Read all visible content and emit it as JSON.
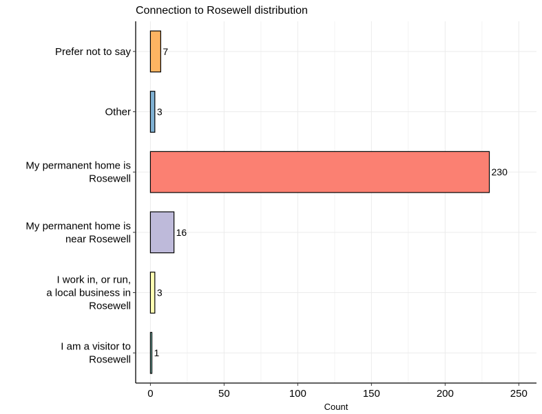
{
  "chart_data": {
    "type": "bar",
    "orientation": "horizontal",
    "title": "Connection to Rosewell distribution",
    "xlabel": "Count",
    "ylabel": "",
    "xlim": [
      -10,
      262
    ],
    "xticks": [
      0,
      50,
      100,
      150,
      200,
      250
    ],
    "grid": true,
    "legend": "none",
    "categories": [
      "Prefer not to say",
      "Other",
      "My permanent home is\nRosewell",
      "My permanent home is\nnear Rosewell",
      "I work in, or run,\na local business in\nRosewell",
      "I am a visitor to\nRosewell"
    ],
    "values": [
      7,
      3,
      230,
      16,
      3,
      1
    ],
    "bar_labels": [
      "7",
      "3",
      "230",
      "16",
      "3",
      "1"
    ],
    "colors": [
      "#FDB462",
      "#80B1D3",
      "#FB8072",
      "#BEBADA",
      "#FFFFB3",
      "#8DD3C7"
    ]
  }
}
